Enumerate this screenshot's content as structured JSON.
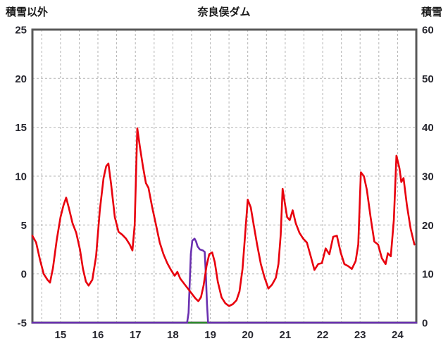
{
  "header": {
    "left_label": "積雪以外",
    "title": "奈良俣ダム",
    "right_label": "積雪"
  },
  "chart_data": {
    "type": "line",
    "title": "奈良俣ダム",
    "left_axis": {
      "label": "積雪以外",
      "min": -5,
      "max": 25,
      "ticks": [
        25,
        20,
        15,
        10,
        5,
        0,
        -5
      ]
    },
    "right_axis": {
      "label": "積雪",
      "min": 0,
      "max": 60,
      "ticks": [
        60,
        50,
        40,
        30,
        20,
        10,
        0
      ]
    },
    "x_axis": {
      "min": 14.25,
      "max": 24.5,
      "ticks": [
        15,
        16,
        17,
        18,
        19,
        20,
        21,
        22,
        23,
        24
      ],
      "grid_start": 14.5,
      "grid_step": 0.5
    },
    "grid_color": "#b3b3b3",
    "frame_color": "#595959",
    "text_color": "#26262e",
    "series": [
      {
        "name": "green-baseline-series",
        "axis": "right",
        "color": "#2e8b2e",
        "width": 2.2,
        "points": [
          [
            14.25,
            0
          ],
          [
            24.5,
            0
          ]
        ]
      },
      {
        "name": "purple-snow-series",
        "axis": "right",
        "color": "#6a30b0",
        "width": 2.6,
        "points": [
          [
            14.25,
            0
          ],
          [
            18.38,
            0
          ],
          [
            18.42,
            2
          ],
          [
            18.45,
            8
          ],
          [
            18.48,
            14
          ],
          [
            18.52,
            16.8
          ],
          [
            18.58,
            17.2
          ],
          [
            18.62,
            16.6
          ],
          [
            18.66,
            15.6
          ],
          [
            18.72,
            15.0
          ],
          [
            18.8,
            14.8
          ],
          [
            18.85,
            14.5
          ],
          [
            18.88,
            10
          ],
          [
            18.91,
            4
          ],
          [
            18.94,
            0
          ],
          [
            24.5,
            0
          ]
        ]
      },
      {
        "name": "red-series",
        "axis": "left",
        "color": "#e8000d",
        "width": 2.6,
        "points": [
          [
            14.25,
            3.9
          ],
          [
            14.35,
            3.2
          ],
          [
            14.45,
            1.5
          ],
          [
            14.55,
            0.0
          ],
          [
            14.65,
            -0.6
          ],
          [
            14.72,
            -0.9
          ],
          [
            14.8,
            0.6
          ],
          [
            14.9,
            3.5
          ],
          [
            15.0,
            5.8
          ],
          [
            15.08,
            7.0
          ],
          [
            15.15,
            7.8
          ],
          [
            15.22,
            6.8
          ],
          [
            15.32,
            5.2
          ],
          [
            15.42,
            4.2
          ],
          [
            15.52,
            2.5
          ],
          [
            15.6,
            0.5
          ],
          [
            15.68,
            -0.8
          ],
          [
            15.75,
            -1.2
          ],
          [
            15.85,
            -0.6
          ],
          [
            15.95,
            1.8
          ],
          [
            16.05,
            6.5
          ],
          [
            16.15,
            9.8
          ],
          [
            16.22,
            11.0
          ],
          [
            16.28,
            11.3
          ],
          [
            16.35,
            9.2
          ],
          [
            16.45,
            5.8
          ],
          [
            16.55,
            4.3
          ],
          [
            16.65,
            4.0
          ],
          [
            16.75,
            3.6
          ],
          [
            16.85,
            3.0
          ],
          [
            16.92,
            2.4
          ],
          [
            16.98,
            5.0
          ],
          [
            17.05,
            14.9
          ],
          [
            17.12,
            13.0
          ],
          [
            17.2,
            11.0
          ],
          [
            17.28,
            9.3
          ],
          [
            17.35,
            8.8
          ],
          [
            17.45,
            6.8
          ],
          [
            17.55,
            5.0
          ],
          [
            17.65,
            3.2
          ],
          [
            17.75,
            2.0
          ],
          [
            17.85,
            1.1
          ],
          [
            17.95,
            0.4
          ],
          [
            18.05,
            -0.2
          ],
          [
            18.12,
            0.2
          ],
          [
            18.2,
            -0.5
          ],
          [
            18.3,
            -1.0
          ],
          [
            18.4,
            -1.5
          ],
          [
            18.5,
            -2.0
          ],
          [
            18.6,
            -2.5
          ],
          [
            18.68,
            -2.8
          ],
          [
            18.75,
            -2.4
          ],
          [
            18.82,
            -1.2
          ],
          [
            18.9,
            0.8
          ],
          [
            18.97,
            2.0
          ],
          [
            19.05,
            2.2
          ],
          [
            19.12,
            1.2
          ],
          [
            19.2,
            -0.8
          ],
          [
            19.3,
            -2.4
          ],
          [
            19.4,
            -3.0
          ],
          [
            19.5,
            -3.3
          ],
          [
            19.6,
            -3.1
          ],
          [
            19.7,
            -2.7
          ],
          [
            19.78,
            -1.8
          ],
          [
            19.86,
            0.5
          ],
          [
            19.94,
            4.5
          ],
          [
            20.0,
            7.6
          ],
          [
            20.08,
            6.8
          ],
          [
            20.16,
            5.0
          ],
          [
            20.25,
            3.0
          ],
          [
            20.35,
            1.0
          ],
          [
            20.45,
            -0.4
          ],
          [
            20.55,
            -1.5
          ],
          [
            20.65,
            -1.1
          ],
          [
            20.75,
            -0.4
          ],
          [
            20.82,
            1.0
          ],
          [
            20.88,
            4.0
          ],
          [
            20.93,
            8.7
          ],
          [
            20.98,
            7.5
          ],
          [
            21.05,
            5.8
          ],
          [
            21.12,
            5.5
          ],
          [
            21.2,
            6.5
          ],
          [
            21.28,
            5.2
          ],
          [
            21.38,
            4.2
          ],
          [
            21.48,
            3.6
          ],
          [
            21.58,
            3.2
          ],
          [
            21.68,
            1.8
          ],
          [
            21.78,
            0.4
          ],
          [
            21.88,
            1.0
          ],
          [
            21.98,
            1.1
          ],
          [
            22.08,
            2.6
          ],
          [
            22.18,
            2.0
          ],
          [
            22.28,
            3.8
          ],
          [
            22.38,
            3.9
          ],
          [
            22.48,
            2.2
          ],
          [
            22.58,
            1.0
          ],
          [
            22.68,
            0.8
          ],
          [
            22.78,
            0.5
          ],
          [
            22.88,
            1.3
          ],
          [
            22.95,
            3.0
          ],
          [
            23.02,
            10.4
          ],
          [
            23.1,
            10.0
          ],
          [
            23.18,
            8.6
          ],
          [
            23.28,
            5.8
          ],
          [
            23.38,
            3.3
          ],
          [
            23.48,
            3.0
          ],
          [
            23.58,
            1.6
          ],
          [
            23.68,
            1.0
          ],
          [
            23.74,
            2.1
          ],
          [
            23.82,
            1.8
          ],
          [
            23.9,
            5.5
          ],
          [
            23.97,
            12.1
          ],
          [
            24.05,
            10.8
          ],
          [
            24.1,
            9.4
          ],
          [
            24.16,
            9.8
          ],
          [
            24.25,
            7.0
          ],
          [
            24.35,
            4.6
          ],
          [
            24.45,
            3.0
          ]
        ]
      }
    ]
  }
}
